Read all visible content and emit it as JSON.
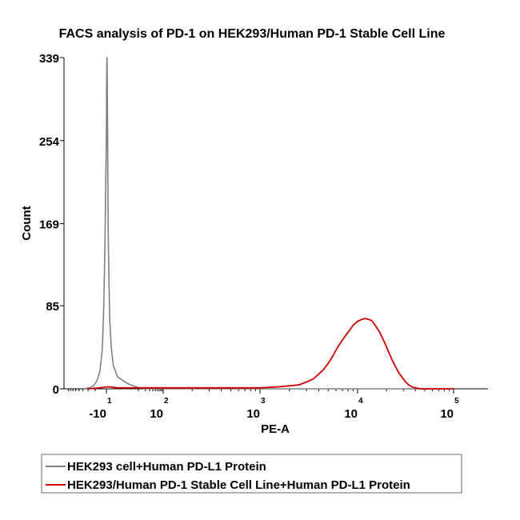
{
  "chart_data": {
    "type": "line",
    "title": "FACS analysis of PD-1 on HEK293/Human PD-1 Stable Cell Line",
    "xlabel": "PE-A",
    "ylabel": "Count",
    "x_scale": "biexponential",
    "y_ticks": [
      "0",
      "85",
      "169",
      "254",
      "339"
    ],
    "y_tick_values": [
      0,
      85,
      169,
      254,
      339
    ],
    "ylim": [
      0,
      339
    ],
    "x_ticks": [
      {
        "base": "-10",
        "exp": "1",
        "value": -10
      },
      {
        "base": "10",
        "exp": "2",
        "value": 100
      },
      {
        "base": "10",
        "exp": "3",
        "value": 1000
      },
      {
        "base": "10",
        "exp": "4",
        "value": 10000
      },
      {
        "base": "10",
        "exp": "5",
        "value": 100000
      }
    ],
    "grid": false,
    "legend_position": "bottom",
    "series": [
      {
        "name": "HEK293 cell+Human PD-L1 Protein",
        "color": "#808080",
        "points": [
          [
            -40,
            0
          ],
          [
            -28,
            1
          ],
          [
            -22,
            3
          ],
          [
            -18,
            8
          ],
          [
            -15,
            18
          ],
          [
            -13,
            40
          ],
          [
            -12,
            75
          ],
          [
            -11,
            140
          ],
          [
            -10.5,
            200
          ],
          [
            -10,
            260
          ],
          [
            -9.6,
            310
          ],
          [
            -9.3,
            335
          ],
          [
            -9,
            339
          ],
          [
            -8.6,
            325
          ],
          [
            -8.2,
            290
          ],
          [
            -7.6,
            230
          ],
          [
            -7,
            165
          ],
          [
            -6,
            110
          ],
          [
            -5,
            70
          ],
          [
            -3.5,
            42
          ],
          [
            -2,
            24
          ],
          [
            0,
            12
          ],
          [
            3,
            5
          ],
          [
            8,
            2
          ],
          [
            15,
            0.5
          ],
          [
            25,
            0
          ],
          [
            100000,
            0
          ]
        ]
      },
      {
        "name": "HEK293/Human PD-1 Stable Cell Line+Human PD-L1 Protein",
        "color": "#cc0000",
        "points": [
          [
            -30,
            0
          ],
          [
            -15,
            1
          ],
          [
            -10,
            2
          ],
          [
            -5,
            2
          ],
          [
            0,
            1
          ],
          [
            30,
            1
          ],
          [
            100,
            1
          ],
          [
            300,
            1
          ],
          [
            1000,
            1
          ],
          [
            1500,
            2
          ],
          [
            2000,
            3
          ],
          [
            2500,
            4
          ],
          [
            3000,
            7
          ],
          [
            3500,
            10
          ],
          [
            4000,
            15
          ],
          [
            4500,
            20
          ],
          [
            5000,
            26
          ],
          [
            5600,
            34
          ],
          [
            6200,
            42
          ],
          [
            7000,
            50
          ],
          [
            8000,
            58
          ],
          [
            9000,
            65
          ],
          [
            10000,
            69
          ],
          [
            11000,
            71
          ],
          [
            12000,
            72
          ],
          [
            13000,
            71
          ],
          [
            14000,
            70
          ],
          [
            15000,
            66
          ],
          [
            17000,
            58
          ],
          [
            19000,
            48
          ],
          [
            21000,
            38
          ],
          [
            23000,
            29
          ],
          [
            25000,
            22
          ],
          [
            27000,
            16
          ],
          [
            29000,
            12
          ],
          [
            31000,
            8
          ],
          [
            34000,
            4
          ],
          [
            37000,
            2
          ],
          [
            40000,
            1
          ],
          [
            45000,
            0
          ],
          [
            100000,
            0
          ]
        ]
      }
    ]
  }
}
